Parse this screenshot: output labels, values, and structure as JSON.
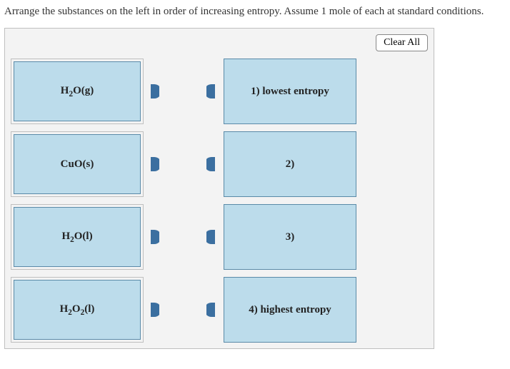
{
  "question": "Arrange the substances on the left in order of increasing entropy. Assume 1 mole of each at standard conditions.",
  "clear_label": "Clear All",
  "colors": {
    "tile_bg": "#bcdceb",
    "tile_border": "#5a8aa8",
    "arena_bg": "#f3f3f3",
    "arena_border": "#bfbfbf",
    "handle_fill": "#3b6fa0"
  },
  "sources": [
    {
      "id": "h2o-g",
      "html": "H<sub>2</sub>O(g)"
    },
    {
      "id": "cuo-s",
      "html": "CuO(s)"
    },
    {
      "id": "h2o-l",
      "html": "H<sub>2</sub>O(l)"
    },
    {
      "id": "h2o2-l",
      "html": "H<sub>2</sub>O<sub>2</sub>(l)"
    }
  ],
  "targets": [
    {
      "id": "slot-1",
      "label": "1) lowest entropy"
    },
    {
      "id": "slot-2",
      "label": "2)"
    },
    {
      "id": "slot-3",
      "label": "3)"
    },
    {
      "id": "slot-4",
      "label": "4) highest entropy"
    }
  ]
}
